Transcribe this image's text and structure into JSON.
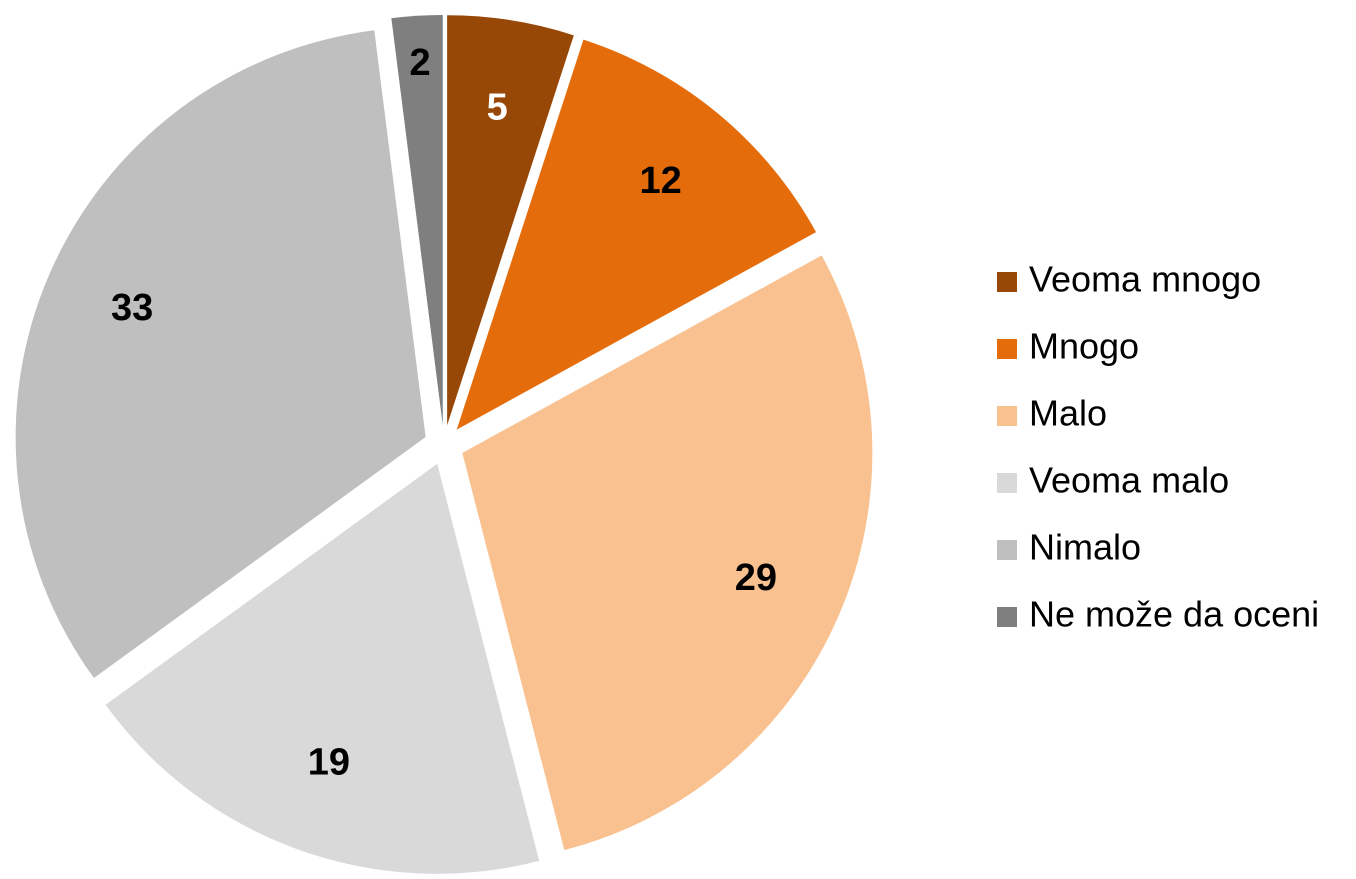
{
  "chart_data": {
    "type": "pie",
    "categories": [
      "Veoma mnogo",
      "Mnogo",
      "Malo",
      "Veoma malo",
      "Nimalo",
      "Ne  može da oceni"
    ],
    "values": [
      5,
      12,
      29,
      19,
      33,
      2
    ],
    "colors": [
      "#974706",
      "#e46c0a",
      "#f9c18f",
      "#d9d9d9",
      "#bfbfbf",
      "#7f7f7f"
    ],
    "legend": "right"
  }
}
